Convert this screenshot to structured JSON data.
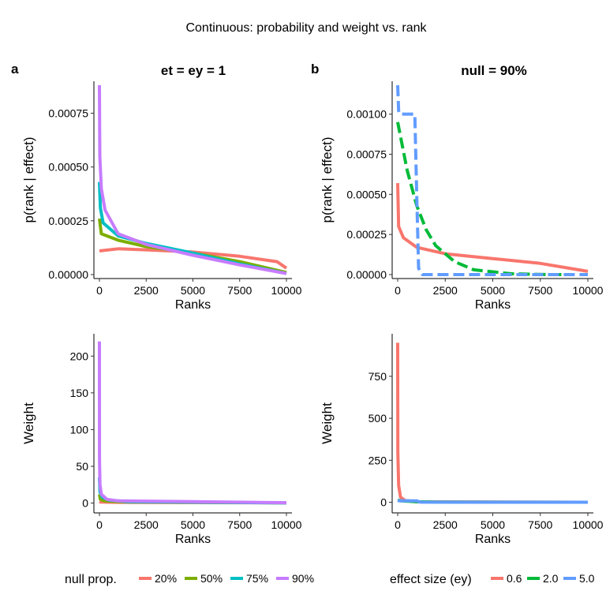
{
  "figure": {
    "title": "Continuous: probability and weight vs. rank",
    "panel_a_tag": "a",
    "panel_b_tag": "b",
    "panel_a_strip": "et = ey = 1",
    "panel_b_strip": "null = 90%"
  },
  "legends": {
    "left": {
      "title": "null prop.",
      "items": [
        {
          "label": "20%",
          "color": "#F8766D"
        },
        {
          "label": "50%",
          "color": "#7CAE00"
        },
        {
          "label": "75%",
          "color": "#00BFC4"
        },
        {
          "label": "90%",
          "color": "#C77CFF"
        }
      ]
    },
    "right": {
      "title": "effect size (ey)",
      "items": [
        {
          "label": "0.6",
          "color": "#F8766D"
        },
        {
          "label": "2.0",
          "color": "#00BA38"
        },
        {
          "label": "5.0",
          "color": "#619CFF"
        }
      ]
    }
  },
  "chart_data": [
    {
      "id": "a-top",
      "type": "line",
      "xlabel": "Ranks",
      "ylabel": "p(rank | effect)",
      "xlim": [
        0,
        10000
      ],
      "ylim": [
        0,
        0.00088
      ],
      "xticks": [
        0,
        2500,
        5000,
        7500,
        10000
      ],
      "xtick_labels": [
        "0",
        "2500",
        "5000",
        "7500",
        "10000"
      ],
      "yticks": [
        0,
        0.00025,
        0.0005,
        0.00075
      ],
      "ytick_labels": [
        "0.00000",
        "0.00025",
        "0.00050",
        "0.00075"
      ],
      "series": [
        {
          "name": "20%",
          "color": "#F8766D",
          "x": [
            0,
            1000,
            2500,
            5000,
            7500,
            9500,
            10000
          ],
          "y": [
            0.00011,
            0.00012,
            0.000115,
            0.000105,
            8.5e-05,
            6e-05,
            3e-05
          ]
        },
        {
          "name": "50%",
          "color": "#7CAE00",
          "x": [
            0,
            100,
            1000,
            2500,
            5000,
            7500,
            10000
          ],
          "y": [
            0.00026,
            0.00019,
            0.00016,
            0.00013,
            0.0001,
            6e-05,
            1e-05
          ]
        },
        {
          "name": "75%",
          "color": "#00BFC4",
          "x": [
            0,
            50,
            200,
            1000,
            2500,
            5000,
            7500,
            10000
          ],
          "y": [
            0.00043,
            0.00031,
            0.00024,
            0.00018,
            0.000145,
            0.0001,
            5e-05,
            5e-06
          ]
        },
        {
          "name": "90%",
          "color": "#C77CFF",
          "x": [
            0,
            20,
            100,
            300,
            1000,
            2500,
            5000,
            7500,
            10000
          ],
          "y": [
            0.00088,
            0.00055,
            0.0004,
            0.0003,
            0.00019,
            0.00014,
            9e-05,
            4.5e-05,
            5e-06
          ]
        }
      ]
    },
    {
      "id": "b-top",
      "type": "line",
      "xlabel": "Ranks",
      "ylabel": "p(rank | effect)",
      "xlim": [
        0,
        10000
      ],
      "ylim": [
        0,
        0.00118
      ],
      "xticks": [
        0,
        2500,
        5000,
        7500,
        10000
      ],
      "xtick_labels": [
        "0",
        "2500",
        "5000",
        "7500",
        "10000"
      ],
      "yticks": [
        0,
        0.00025,
        0.0005,
        0.00075,
        0.001
      ],
      "ytick_labels": [
        "0.00000",
        "0.00025",
        "0.00050",
        "0.00075",
        "0.00100"
      ],
      "series": [
        {
          "name": "0.6",
          "color": "#F8766D",
          "x": [
            0,
            50,
            300,
            1000,
            2500,
            5000,
            7500,
            10000
          ],
          "y": [
            0.00057,
            0.0003,
            0.00023,
            0.00017,
            0.00013,
            0.0001,
            7e-05,
            2e-05
          ]
        },
        {
          "name": "2.0",
          "color": "#00BA38",
          "dashed": true,
          "x": [
            0,
            200,
            500,
            1000,
            1500,
            2000,
            3000,
            4000,
            6000,
            8000,
            9000
          ],
          "y": [
            0.00095,
            0.00083,
            0.00065,
            0.00043,
            0.00028,
            0.00018,
            8e-05,
            3e-05,
            5e-06,
            0,
            0
          ]
        },
        {
          "name": "5.0",
          "color": "#619CFF",
          "dashed": true,
          "x": [
            0,
            50,
            100,
            900,
            1000,
            1100,
            1300,
            10000
          ],
          "y": [
            0.00118,
            0.00102,
            0.001,
            0.001,
            0.0005,
            4e-05,
            0,
            0
          ]
        }
      ]
    },
    {
      "id": "a-bottom",
      "type": "line",
      "xlabel": "Ranks",
      "ylabel": "Weight",
      "xlim": [
        0,
        10000
      ],
      "ylim": [
        -8,
        225
      ],
      "xticks": [
        0,
        2500,
        5000,
        7500,
        10000
      ],
      "xtick_labels": [
        "0",
        "2500",
        "5000",
        "7500",
        "10000"
      ],
      "yticks": [
        0,
        50,
        100,
        150,
        200
      ],
      "ytick_labels": [
        "0",
        "50",
        "100",
        "150",
        "200"
      ],
      "series": [
        {
          "name": "20%",
          "color": "#F8766D",
          "x": [
            0,
            50,
            300,
            1000,
            10000
          ],
          "y": [
            2,
            1.5,
            1.2,
            1,
            0.3
          ]
        },
        {
          "name": "50%",
          "color": "#7CAE00",
          "x": [
            0,
            50,
            300,
            1000,
            10000
          ],
          "y": [
            12,
            5,
            3,
            2,
            0.3
          ]
        },
        {
          "name": "75%",
          "color": "#00BFC4",
          "x": [
            0,
            30,
            150,
            500,
            1500,
            10000
          ],
          "y": [
            35,
            15,
            8,
            4,
            2,
            0.2
          ]
        },
        {
          "name": "90%",
          "color": "#C77CFF",
          "x": [
            0,
            5,
            30,
            100,
            400,
            1000,
            10000
          ],
          "y": [
            220,
            60,
            25,
            12,
            5,
            3,
            0.5
          ]
        }
      ]
    },
    {
      "id": "b-bottom",
      "type": "line",
      "xlabel": "Ranks",
      "ylabel": "Weight",
      "xlim": [
        0,
        10000
      ],
      "ylim": [
        -40,
        980
      ],
      "xticks": [
        0,
        2500,
        5000,
        7500,
        10000
      ],
      "xtick_labels": [
        "0",
        "2500",
        "5000",
        "7500",
        "10000"
      ],
      "yticks": [
        0,
        250,
        500,
        750
      ],
      "ytick_labels": [
        "0",
        "250",
        "500",
        "750"
      ],
      "series": [
        {
          "name": "0.6",
          "color": "#F8766D",
          "x": [
            0,
            10,
            50,
            150,
            400,
            1000,
            10000
          ],
          "y": [
            950,
            300,
            100,
            30,
            10,
            3,
            0
          ]
        },
        {
          "name": "2.0",
          "color": "#00BA38",
          "x": [
            0,
            200,
            1000,
            2000,
            10000
          ],
          "y": [
            12,
            8,
            3,
            1,
            0
          ]
        },
        {
          "name": "5.0",
          "color": "#619CFF",
          "x": [
            0,
            100,
            1000,
            1200,
            10000
          ],
          "y": [
            10,
            9,
            8,
            0.5,
            0
          ]
        }
      ]
    }
  ]
}
